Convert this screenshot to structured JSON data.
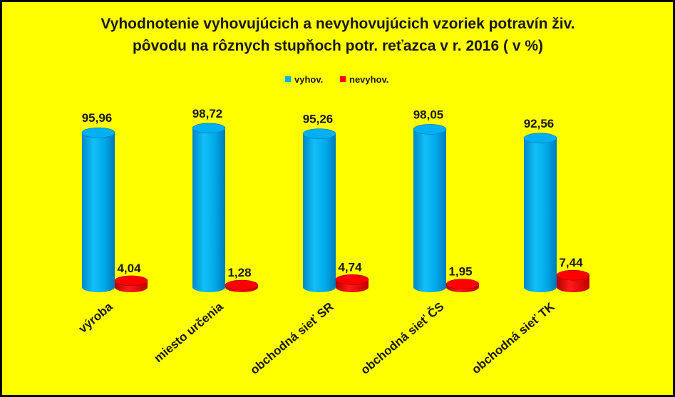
{
  "chart_data": {
    "type": "bar",
    "title": "Vyhodnotenie vyhovujúcich  a nevyhovujúcich  vzoriek potravín živ. pôvodu na rôznych stupňoch potr. reťazca v r. 2016 ( v %)",
    "title_lines": [
      "Vyhodnotenie vyhovujúcich  a nevyhovujúcich  vzoriek potravín živ.",
      "pôvodu na rôznych stupňoch potr. reťazca v r. 2016 ( v %)"
    ],
    "categories": [
      "výroba",
      "miesto určenia",
      "obchodná sieť SR",
      "obchodná sieť ČS",
      "obchodná sieť TK"
    ],
    "series": [
      {
        "name": "vyhov.",
        "values": [
          95.96,
          98.72,
          95.26,
          98.05,
          92.56
        ],
        "labels": [
          "95,96",
          "98,72",
          "95,26",
          "98,05",
          "92,56"
        ]
      },
      {
        "name": "nevyhov.",
        "values": [
          4.04,
          1.28,
          4.74,
          1.95,
          7.44
        ],
        "labels": [
          "4,04",
          "1,28",
          "4,74",
          "1,95",
          "7,44"
        ]
      }
    ],
    "ylim": [
      0,
      100
    ],
    "grid": false,
    "legend": "top-center",
    "colors": {
      "background": "#ffff00",
      "frame": "#000000",
      "vyhov": "#00b0f0",
      "vyhov_dark": "#0070c0",
      "nevyhov": "#ff0000",
      "nevyhov_dark": "#a00000"
    }
  }
}
